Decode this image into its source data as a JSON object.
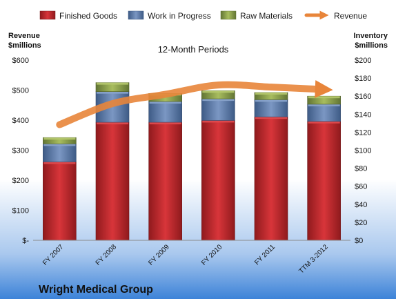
{
  "chart_data": {
    "type": "bar",
    "subtitle": "12-Month Periods",
    "company": "Wright Medical Group",
    "categories": [
      "FY 2007",
      "FY 2008",
      "FY 2009",
      "FY 2010",
      "FY 2011",
      "TTM 3-2012"
    ],
    "series": [
      {
        "name": "Finished Goods",
        "color": "#c0262a",
        "axis": "right",
        "values": [
          87,
          131,
          131,
          133,
          137,
          132
        ]
      },
      {
        "name": "Work in Progress",
        "color": "#5a7aa8",
        "axis": "right",
        "values": [
          20,
          34,
          23,
          24,
          19,
          19
        ]
      },
      {
        "name": "Raw Materials",
        "color": "#8ba048",
        "axis": "right",
        "values": [
          7,
          10,
          9,
          9,
          8,
          9
        ]
      }
    ],
    "line": {
      "name": "Revenue",
      "color": "#e8853a",
      "axis": "left",
      "values": [
        385,
        455,
        486,
        517,
        510,
        502
      ]
    },
    "left_axis": {
      "label_line1": "Revenue",
      "label_line2": "$millions",
      "ylim": [
        0,
        600
      ],
      "ticks": [
        0,
        100,
        200,
        300,
        400,
        500,
        600
      ],
      "tick_labels": [
        "$-",
        "$100",
        "$200",
        "$300",
        "$400",
        "$500",
        "$600"
      ]
    },
    "right_axis": {
      "label_line1": "Inventory",
      "label_line2": "$millions",
      "ylim": [
        0,
        200
      ],
      "ticks": [
        0,
        20,
        40,
        60,
        80,
        100,
        120,
        140,
        160,
        180,
        200
      ],
      "tick_labels": [
        "$0",
        "$20",
        "$40",
        "$60",
        "$80",
        "$100",
        "$120",
        "$140",
        "$160",
        "$180",
        "$200"
      ]
    },
    "legend_position": "top",
    "grid": false,
    "colors": {
      "background_top": "#ffffff",
      "background_bottom": "#3d83d8"
    }
  }
}
